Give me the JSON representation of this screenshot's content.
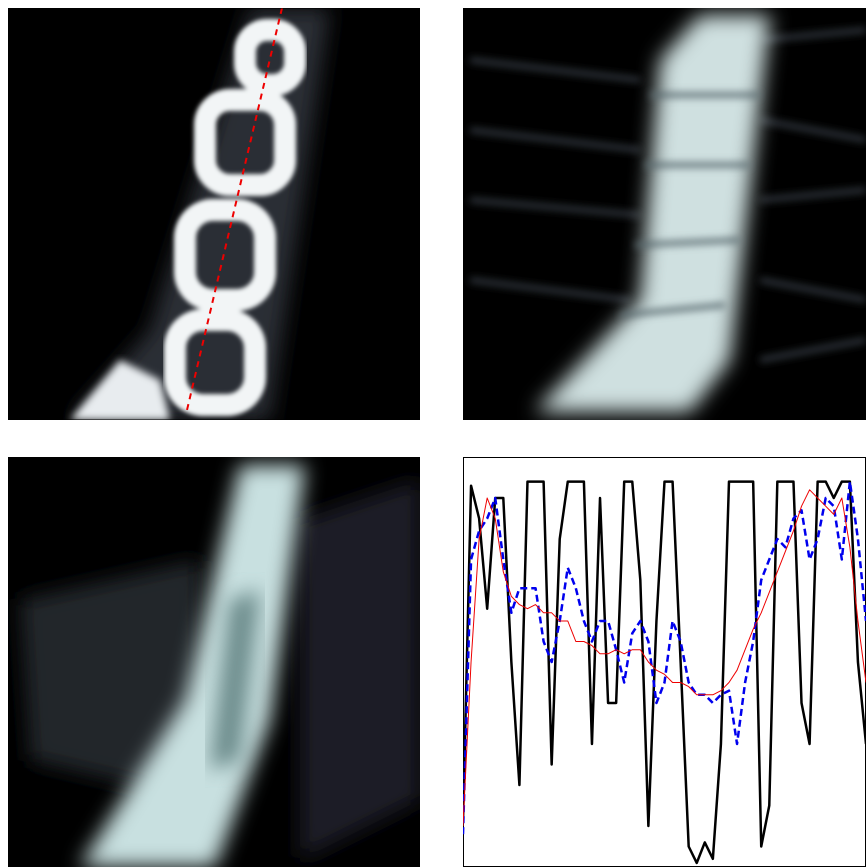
{
  "chart_data": {
    "type": "line",
    "x": [
      0,
      2,
      4,
      6,
      8,
      10,
      12,
      14,
      16,
      18,
      20,
      22,
      24,
      26,
      28,
      30,
      32,
      34,
      36,
      38,
      40,
      42,
      44,
      46,
      48,
      50,
      52,
      54,
      56,
      58,
      60,
      62,
      64,
      66,
      68,
      70,
      72,
      74,
      76,
      78,
      80,
      82,
      84,
      86,
      88,
      90,
      92,
      94,
      96,
      98,
      100
    ],
    "xlim": [
      0,
      100
    ],
    "ylim": [
      0,
      1
    ],
    "series": [
      {
        "color": "#000000",
        "dashed": false,
        "width": 2.5,
        "values": [
          0.11,
          0.93,
          0.85,
          0.63,
          0.9,
          0.9,
          0.5,
          0.2,
          0.94,
          0.94,
          0.94,
          0.25,
          0.8,
          0.94,
          0.94,
          0.94,
          0.3,
          0.9,
          0.4,
          0.4,
          0.94,
          0.94,
          0.7,
          0.1,
          0.6,
          0.94,
          0.94,
          0.5,
          0.05,
          0.01,
          0.06,
          0.02,
          0.3,
          0.94,
          0.94,
          0.94,
          0.94,
          0.05,
          0.15,
          0.94,
          0.94,
          0.94,
          0.4,
          0.3,
          0.94,
          0.94,
          0.9,
          0.94,
          0.94,
          0.5,
          0.3
        ]
      },
      {
        "color": "#0000ee",
        "dashed": true,
        "width": 2.5,
        "values": [
          0.08,
          0.75,
          0.82,
          0.85,
          0.9,
          0.75,
          0.62,
          0.68,
          0.68,
          0.68,
          0.55,
          0.5,
          0.6,
          0.73,
          0.68,
          0.6,
          0.55,
          0.6,
          0.6,
          0.53,
          0.45,
          0.57,
          0.6,
          0.55,
          0.4,
          0.45,
          0.6,
          0.55,
          0.45,
          0.42,
          0.42,
          0.4,
          0.42,
          0.43,
          0.3,
          0.45,
          0.55,
          0.7,
          0.75,
          0.8,
          0.78,
          0.85,
          0.87,
          0.75,
          0.8,
          0.9,
          0.88,
          0.75,
          0.94,
          0.8,
          0.6
        ]
      },
      {
        "color": "#ee0000",
        "dashed": false,
        "width": 1,
        "values": [
          0.1,
          0.5,
          0.8,
          0.9,
          0.85,
          0.72,
          0.66,
          0.64,
          0.63,
          0.64,
          0.62,
          0.62,
          0.6,
          0.6,
          0.55,
          0.55,
          0.54,
          0.52,
          0.52,
          0.53,
          0.52,
          0.53,
          0.53,
          0.5,
          0.48,
          0.47,
          0.45,
          0.45,
          0.44,
          0.42,
          0.42,
          0.42,
          0.43,
          0.45,
          0.48,
          0.53,
          0.58,
          0.62,
          0.67,
          0.72,
          0.77,
          0.82,
          0.88,
          0.92,
          0.9,
          0.88,
          0.86,
          0.9,
          0.78,
          0.6,
          0.45
        ]
      }
    ]
  }
}
